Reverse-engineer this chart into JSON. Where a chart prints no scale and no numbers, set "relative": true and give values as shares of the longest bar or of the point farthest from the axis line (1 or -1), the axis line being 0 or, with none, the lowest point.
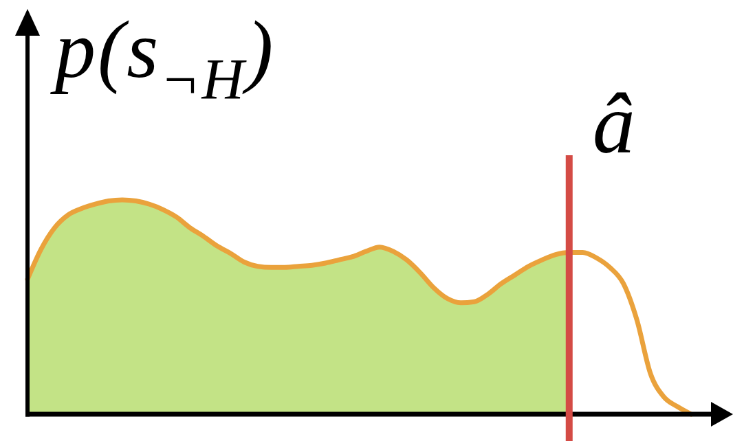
{
  "chart_data": {
    "type": "area",
    "relative": true,
    "ylabel": "p(s$_{¬H}$)",
    "annotations": [
      "â"
    ],
    "categories": [
      null,
      null,
      null,
      null,
      null,
      null,
      null,
      null,
      null,
      null,
      null,
      null,
      null,
      null,
      null,
      null,
      null,
      null,
      null,
      null,
      null,
      null,
      null,
      null,
      null,
      null,
      null,
      null,
      null,
      null,
      null,
      null,
      null,
      null,
      null,
      null,
      null,
      null,
      null,
      null,
      null,
      null,
      null,
      null,
      null,
      null,
      null,
      null,
      null,
      null
    ],
    "series": [
      {
        "color": "#c3e386",
        "values": [
          0.63,
          0.77,
          0.87,
          0.93,
          0.96,
          0.98,
          0.995,
          1,
          0.995,
          0.98,
          0.955,
          0.92,
          0.87,
          0.83,
          0.785,
          0.75,
          0.71,
          0.69,
          0.685,
          0.685,
          0.69,
          0.695,
          0.705,
          0.72,
          0.735,
          0.76,
          0.78,
          0.76,
          0.72,
          0.66,
          0.59,
          0.54,
          0.52,
          0.525,
          0.56,
          0.61,
          0.65,
          0.69,
          0.72,
          0.745,
          0.755,
          null,
          null,
          null,
          null,
          null,
          null,
          null,
          null,
          null
        ]
      },
      {
        "type": "line",
        "color": "#eaa23c",
        "values": [
          0.63,
          0.77,
          0.87,
          0.93,
          0.96,
          0.98,
          0.995,
          1,
          0.995,
          0.98,
          0.955,
          0.92,
          0.87,
          0.83,
          0.785,
          0.75,
          0.71,
          0.69,
          0.685,
          0.685,
          0.69,
          0.695,
          0.705,
          0.72,
          0.735,
          0.76,
          0.78,
          0.76,
          0.72,
          0.66,
          0.59,
          0.54,
          0.52,
          0.525,
          0.56,
          0.61,
          0.65,
          0.69,
          0.72,
          0.745,
          0.755,
          0.755,
          0.73,
          0.685,
          0.61,
          0.44,
          0.19,
          0.08,
          0.035,
          0
        ]
      }
    ]
  }
}
